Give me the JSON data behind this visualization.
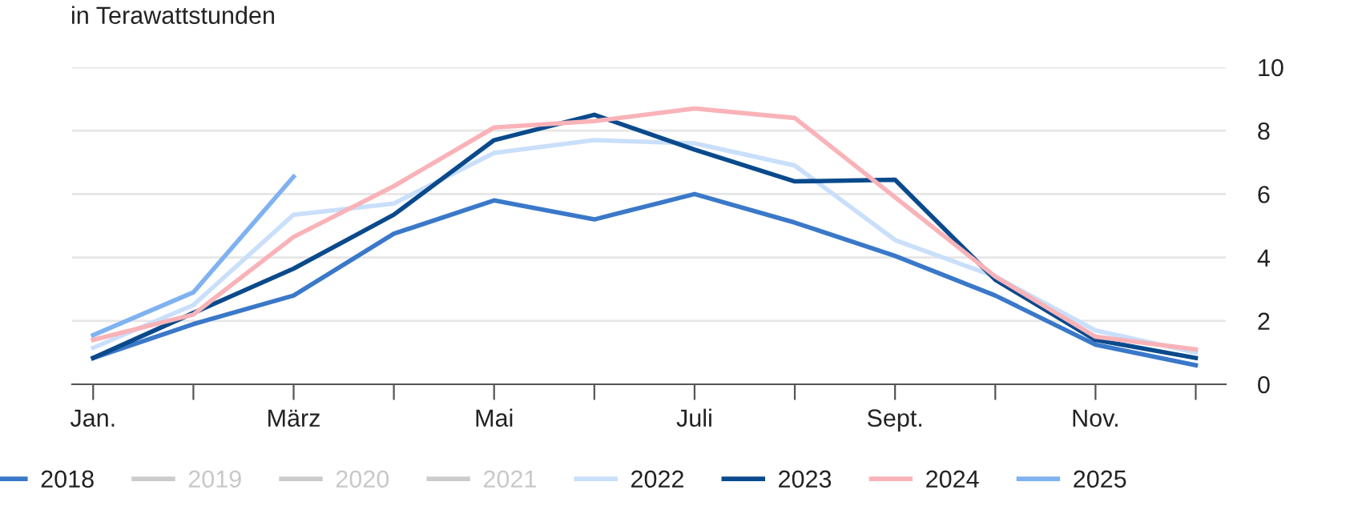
{
  "chart_data": {
    "type": "line",
    "subtitle": "in Terawattstunden",
    "categories": [
      "Jan.",
      null,
      "März",
      null,
      "Mai",
      null,
      "Juli",
      null,
      "Sept.",
      null,
      "Nov.",
      null
    ],
    "series": [
      {
        "name": "2018",
        "color": "#3a78c9",
        "values": [
          0.83,
          1.9,
          2.8,
          4.75,
          5.8,
          5.2,
          6.0,
          5.1,
          4.05,
          2.8,
          1.25,
          0.6
        ]
      },
      {
        "name": "2019",
        "color": "#cccccc",
        "values": [
          null,
          null,
          null,
          null,
          null,
          null,
          null,
          null,
          null,
          null,
          null,
          null
        ]
      },
      {
        "name": "2020",
        "color": "#cccccc",
        "values": [
          null,
          null,
          null,
          null,
          null,
          null,
          null,
          null,
          null,
          null,
          null,
          null
        ]
      },
      {
        "name": "2021",
        "color": "#cccccc",
        "values": [
          null,
          null,
          null,
          null,
          null,
          null,
          null,
          null,
          null,
          null,
          null,
          null
        ]
      },
      {
        "name": "2022",
        "color": "#c9dffa",
        "values": [
          1.15,
          2.5,
          5.35,
          5.7,
          7.3,
          7.7,
          7.6,
          6.9,
          4.55,
          3.4,
          1.7,
          1.0
        ]
      },
      {
        "name": "2023",
        "color": "#0a4a8c",
        "values": [
          0.83,
          2.25,
          3.65,
          5.35,
          7.7,
          8.5,
          7.4,
          6.4,
          6.45,
          3.3,
          1.4,
          0.83
        ]
      },
      {
        "name": "2024",
        "color": "#f9b3b8",
        "values": [
          1.4,
          2.2,
          4.65,
          6.25,
          8.1,
          8.3,
          8.7,
          8.4,
          5.9,
          3.4,
          1.5,
          1.1
        ]
      },
      {
        "name": "2025",
        "color": "#7fb2f0",
        "values": [
          1.55,
          2.9,
          6.55,
          null,
          null,
          null,
          null,
          null,
          null,
          null,
          null,
          null
        ]
      }
    ],
    "ylim": [
      0,
      10
    ],
    "yticks": [
      0,
      2,
      4,
      6,
      8,
      10
    ],
    "grid": "y",
    "legend": "bottom",
    "marker": "none",
    "line_style": "solid"
  }
}
